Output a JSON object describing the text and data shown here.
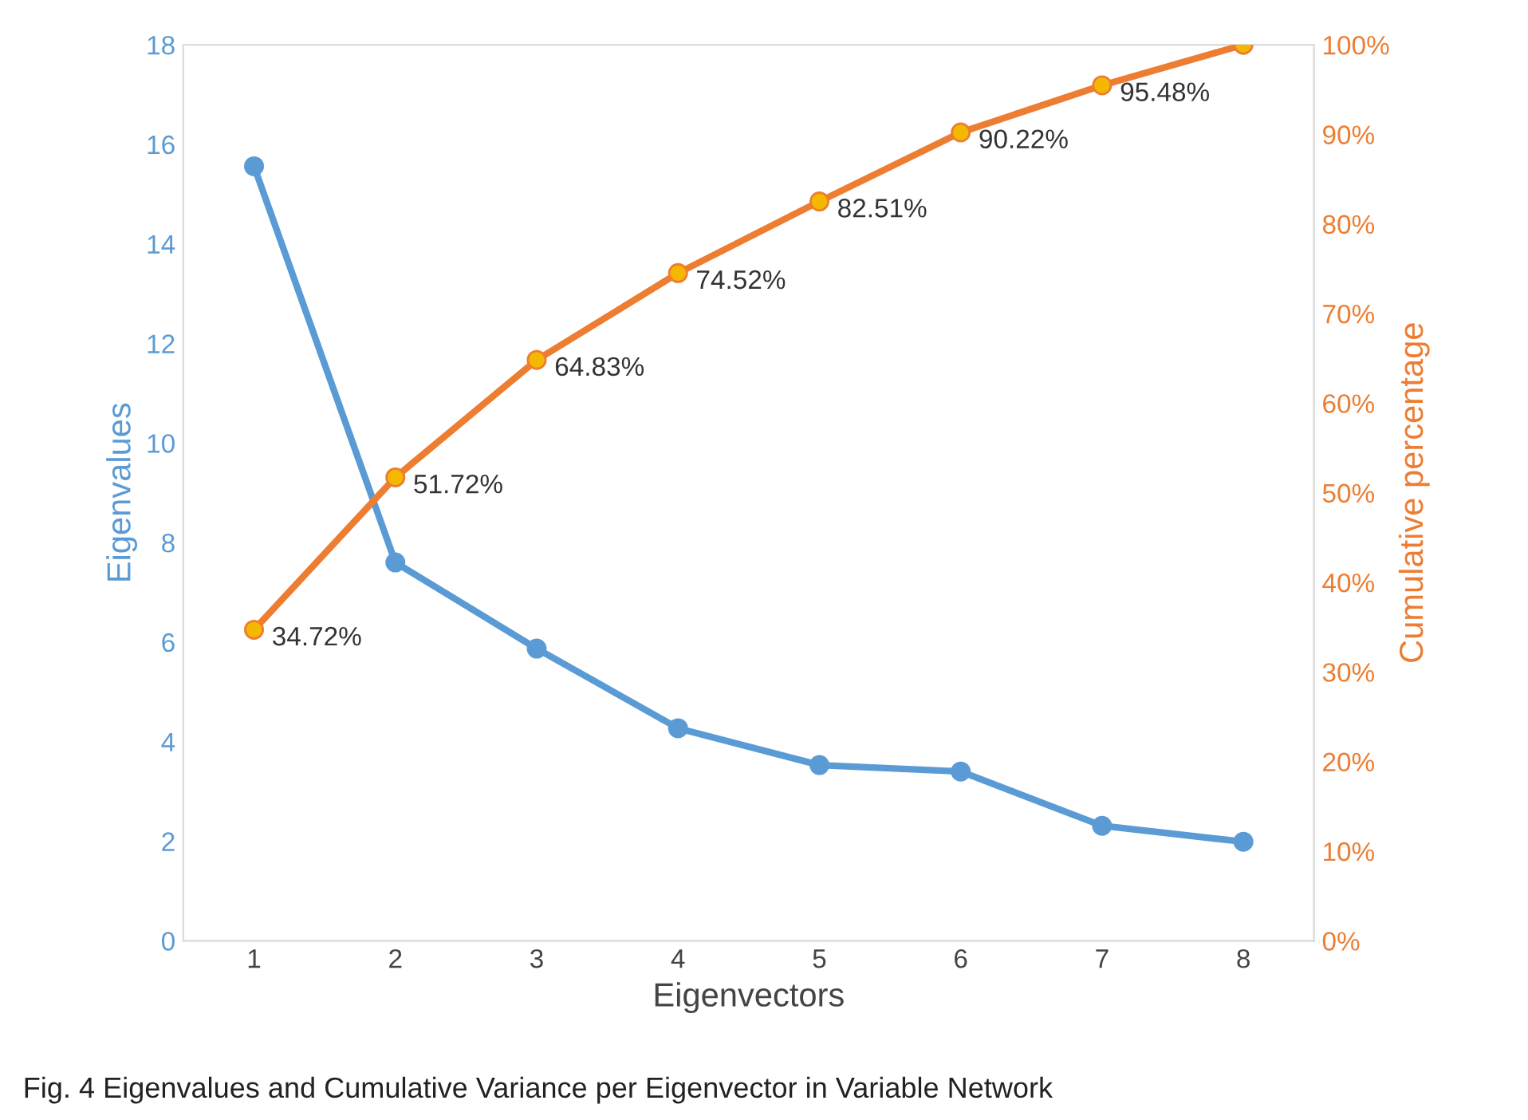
{
  "chart_data": {
    "type": "line",
    "xlabel": "Eigenvectors",
    "ylabel": "Eigenvalues",
    "y2label": "Cumulative percentage",
    "categories": [
      "1",
      "2",
      "3",
      "4",
      "5",
      "6",
      "7",
      "8"
    ],
    "series": [
      {
        "type": "line",
        "color": "#5b9bd5",
        "values": [
          15.56,
          7.6,
          5.87,
          4.27,
          3.53,
          3.4,
          2.31,
          1.99
        ]
      },
      {
        "type": "line",
        "axis": "y2",
        "color": "#ed7d31",
        "values": [
          34.72,
          51.72,
          64.83,
          74.52,
          82.51,
          90.22,
          95.48,
          100
        ],
        "value_labels": [
          "34.72%",
          "51.72%",
          "64.83%",
          "74.52%",
          "82.51%",
          "90.22%",
          "95.48%",
          null
        ]
      }
    ],
    "ylim": [
      0,
      18
    ],
    "yticks": [
      0,
      2,
      4,
      6,
      8,
      10,
      12,
      14,
      16,
      18
    ],
    "y2lim": [
      0,
      100
    ],
    "y2ticks": [
      {
        "value": 0,
        "label": "0%"
      },
      {
        "value": 10,
        "label": "10%"
      },
      {
        "value": 20,
        "label": "20%"
      },
      {
        "value": 30,
        "label": "30%"
      },
      {
        "value": 40,
        "label": "40%"
      },
      {
        "value": 50,
        "label": "50%"
      },
      {
        "value": 60,
        "label": "60%"
      },
      {
        "value": 70,
        "label": "70%"
      },
      {
        "value": 80,
        "label": "80%"
      },
      {
        "value": 90,
        "label": "90%"
      },
      {
        "value": 100,
        "label": "100%"
      }
    ],
    "marker": "circle",
    "line_style": "solid",
    "grid": false,
    "legend": false,
    "annotations": [
      "Fig. 4 Eigenvalues and Cumulative Variance per Eigenvector in Variable Network"
    ]
  }
}
